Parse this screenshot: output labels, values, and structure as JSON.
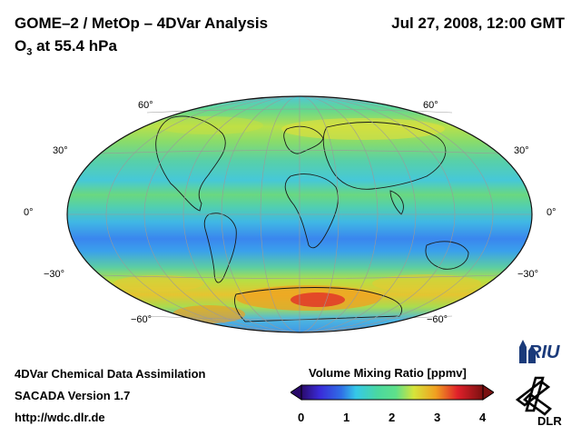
{
  "header": {
    "title": "GOME–2 / MetOp – 4DVar Analysis",
    "species_main": "O",
    "species_sub": "3",
    "species_rest": " at 55.4 hPa",
    "datetime": "Jul 27, 2008, 12:00 GMT"
  },
  "map": {
    "projection": "Hammer-Aitoff global",
    "lat_labels_left": [
      "60°",
      "30°",
      "0°",
      "−30°",
      "−60°"
    ],
    "lat_labels_right": [
      "60°",
      "30°",
      "0°",
      "−30°",
      "−60°"
    ],
    "colors": {
      "low": "#2f6fe6",
      "mid_low": "#35c8e8",
      "mid": "#5ee08a",
      "mid_high": "#d6e43a",
      "high": "#f0a020",
      "max": "#e0202a"
    }
  },
  "footer": {
    "method": "4DVar Chemical Data Assimilation",
    "version": "SACADA Version 1.7",
    "url": "http://wdc.dlr.de"
  },
  "colorbar": {
    "label": "Volume Mixing Ratio [ppmv]",
    "ticks": [
      "0",
      "1",
      "2",
      "3",
      "4"
    ],
    "min": 0,
    "max": 4
  },
  "logos": {
    "riu": "RIU",
    "dlr": "DLR"
  }
}
